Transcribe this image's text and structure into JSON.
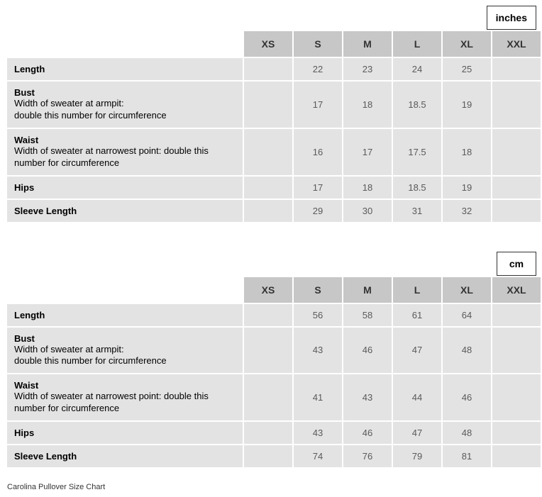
{
  "caption": "Carolina Pullover Size Chart",
  "sizes": [
    "XS",
    "S",
    "M",
    "L",
    "XL",
    "XXL"
  ],
  "measurements": [
    {
      "label": "Length",
      "sub": ""
    },
    {
      "label": "Bust",
      "sub": "Width of sweater at armpit:\ndouble this number for circumference"
    },
    {
      "label": "Waist",
      "sub": "Width of sweater at narrowest point: double this number for circumference"
    },
    {
      "label": "Hips",
      "sub": ""
    },
    {
      "label": "Sleeve Length",
      "sub": ""
    }
  ],
  "tables": [
    {
      "unit": "inches",
      "values": [
        [
          "",
          "22",
          "23",
          "24",
          "25",
          ""
        ],
        [
          "",
          "17",
          "18",
          "18.5",
          "19",
          ""
        ],
        [
          "",
          "16",
          "17",
          "17.5",
          "18",
          ""
        ],
        [
          "",
          "17",
          "18",
          "18.5",
          "19",
          ""
        ],
        [
          "",
          "29",
          "30",
          "31",
          "32",
          ""
        ]
      ]
    },
    {
      "unit": "cm",
      "values": [
        [
          "",
          "56",
          "58",
          "61",
          "64",
          ""
        ],
        [
          "",
          "43",
          "46",
          "47",
          "48",
          ""
        ],
        [
          "",
          "41",
          "43",
          "44",
          "46",
          ""
        ],
        [
          "",
          "43",
          "46",
          "47",
          "48",
          ""
        ],
        [
          "",
          "74",
          "76",
          "79",
          "81",
          ""
        ]
      ]
    }
  ],
  "style": {
    "header_bg": "#c7c7c7",
    "cell_bg": "#e3e3e3",
    "value_color": "#5a5a5a",
    "label_color": "#000000",
    "border_spacing": 2,
    "font_family": "Arial",
    "unit_border": "#333333"
  }
}
